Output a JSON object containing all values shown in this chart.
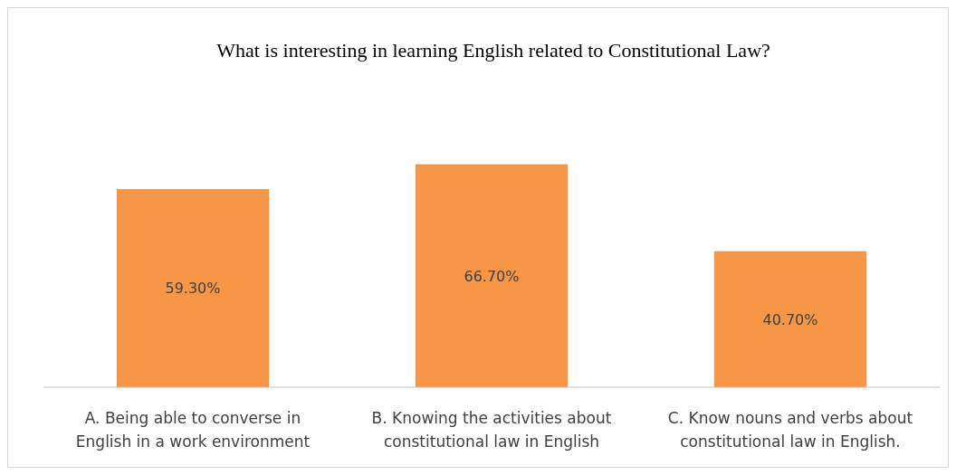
{
  "chart_data": {
    "type": "bar",
    "title": "What is interesting in learning English related to Constitutional Law?",
    "categories": [
      "A. Being able to converse in English in a work environment",
      "B.  Knowing the activities about constitutional law in English",
      "C. Know nouns and verbs about constitutional law in English."
    ],
    "values": [
      59.3,
      66.7,
      40.7
    ],
    "value_labels": [
      "59.30%",
      "66.70%",
      "40.70%"
    ],
    "color": "#f79646"
  }
}
